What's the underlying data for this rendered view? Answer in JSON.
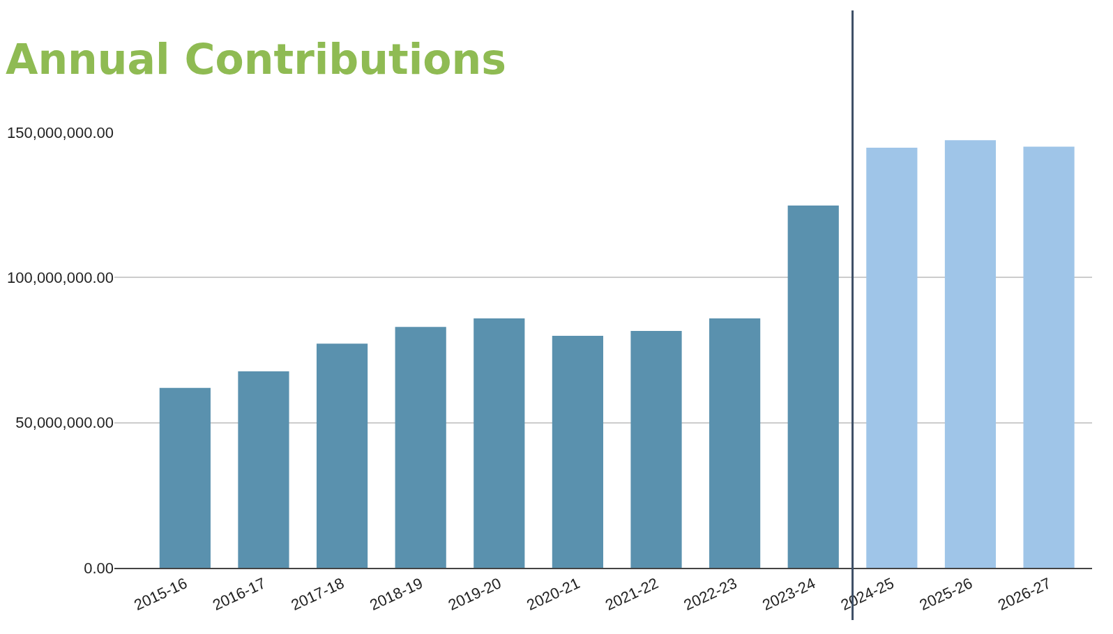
{
  "chart_data": {
    "type": "bar",
    "title": "Annual Contributions",
    "categories": [
      "2015-16",
      "2016-17",
      "2017-18",
      "2018-19",
      "2019-20",
      "2020-21",
      "2021-22",
      "2022-23",
      "2023-24",
      "2024-25",
      "2025-26",
      "2026-27"
    ],
    "values": [
      62000000,
      67700000,
      77200000,
      83000000,
      85900000,
      79900000,
      81600000,
      85900000,
      124800000,
      144700000,
      147300000,
      145100000
    ],
    "colors": [
      "#5a91ae",
      "#5a91ae",
      "#5a91ae",
      "#5a91ae",
      "#5a91ae",
      "#5a91ae",
      "#5a91ae",
      "#5a91ae",
      "#5a91ae",
      "#9fc5e8",
      "#9fc5e8",
      "#9fc5e8"
    ],
    "ylim": [
      0,
      150000000
    ],
    "yticks": [
      {
        "value": 0,
        "label": "0.00"
      },
      {
        "value": 50000000,
        "label": "50,000,000.00"
      },
      {
        "value": 100000000,
        "label": "100,000,000.00"
      },
      {
        "value": 150000000,
        "label": "150,000,000.00"
      }
    ],
    "ref_lines": [
      {
        "axis": "x",
        "value": "2024-25",
        "color": "#3d4f66",
        "line_style": "solid"
      }
    ],
    "grid": "y"
  }
}
